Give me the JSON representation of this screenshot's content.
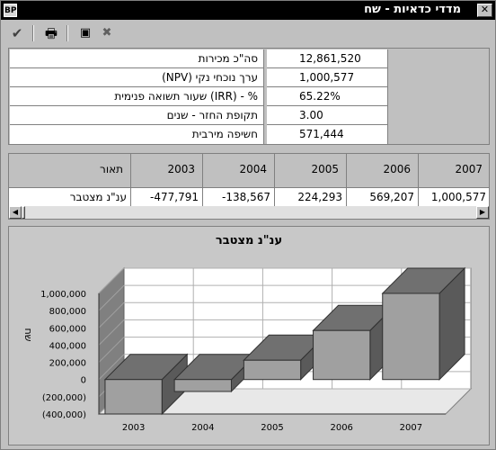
{
  "window": {
    "title": "מדדי כדאיות - שח",
    "app_icon": "BP",
    "close_label": "✕"
  },
  "toolbar": {
    "ok_icon": "✔",
    "print_icon": "🖶",
    "export_icon": "▣",
    "excel_icon": "✖"
  },
  "summary": {
    "rows": [
      {
        "label": "סה\"כ מכירות",
        "value": "12,861,520"
      },
      {
        "label": "ערך נוכחי נקי (NPV)",
        "value": "1,000,577"
      },
      {
        "label": "% - (IRR) שעור תשואה פנימית",
        "value": "65.22%"
      },
      {
        "label": "תקופת החזר - שנים",
        "value": "3.00"
      },
      {
        "label": "חשיפה מירבית",
        "value": "571,444"
      }
    ]
  },
  "grid": {
    "description_header": "תאור",
    "years": [
      "2003",
      "2004",
      "2005",
      "2006",
      "2007"
    ],
    "row_label": "ענ\"נ מצטבר",
    "row_values": [
      "-477,791",
      "-138,567",
      "224,293",
      "569,207",
      "1,000,577"
    ]
  },
  "chart_data": {
    "type": "bar",
    "title": "ענ\"נ מצטבר",
    "ylabel": "שח",
    "xlabel": "",
    "categories": [
      "2003",
      "2004",
      "2005",
      "2006",
      "2007"
    ],
    "values": [
      -477791,
      -138567,
      224293,
      569207,
      1000577
    ],
    "ylim": [
      -400000,
      1000000
    ],
    "yticks": [
      "1,000,000",
      "800,000",
      "600,000",
      "400,000",
      "200,000",
      "0",
      "(200,000)",
      "(400,000)"
    ],
    "grid": true,
    "legend": "none",
    "bar_color": "#a0a0a0"
  }
}
